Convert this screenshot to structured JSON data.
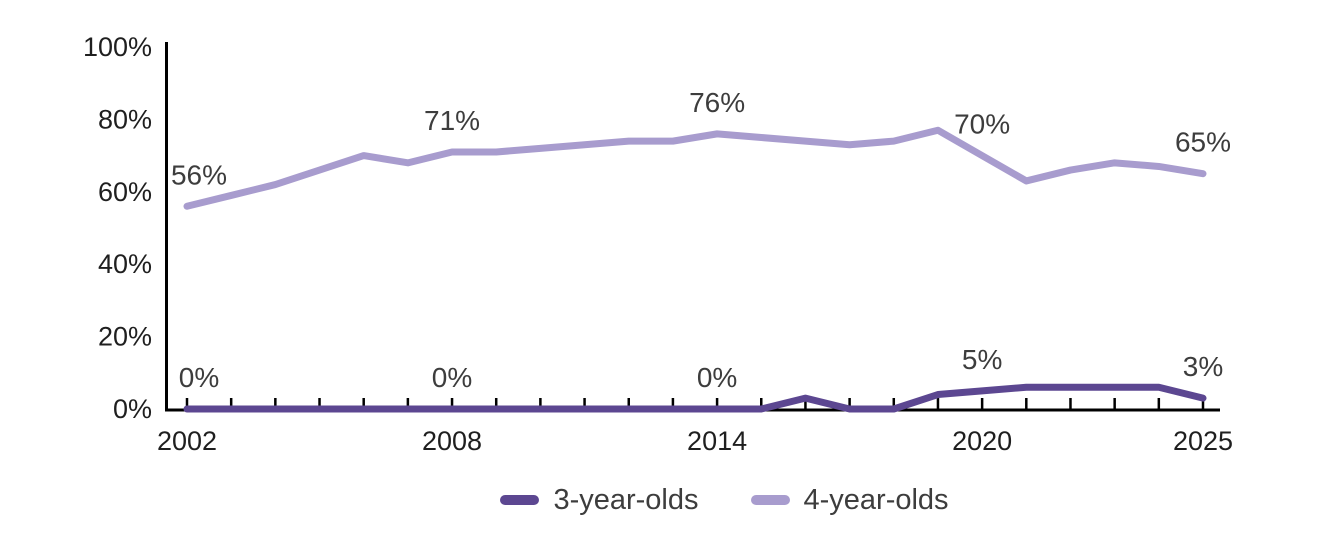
{
  "chart_data": {
    "type": "line",
    "x": [
      2002,
      2003,
      2004,
      2005,
      2006,
      2007,
      2008,
      2009,
      2010,
      2011,
      2012,
      2013,
      2014,
      2015,
      2016,
      2017,
      2018,
      2019,
      2020,
      2021,
      2022,
      2023,
      2024,
      2025
    ],
    "series": [
      {
        "name": "3-year-olds",
        "color": "#5c4791",
        "values": [
          0,
          0,
          0,
          0,
          0,
          0,
          0,
          0,
          0,
          0,
          0,
          0,
          0,
          0,
          3,
          0,
          0,
          4,
          5,
          6,
          6,
          6,
          6,
          3
        ]
      },
      {
        "name": "4-year-olds",
        "color": "#a89cce",
        "values": [
          56,
          59,
          62,
          66,
          70,
          68,
          71,
          71,
          72,
          73,
          74,
          74,
          76,
          75,
          74,
          73,
          74,
          77,
          70,
          63,
          66,
          68,
          67,
          65
        ]
      }
    ],
    "annotations": [
      {
        "series": "4-year-olds",
        "year": 2002,
        "value": 56,
        "text": "56%",
        "dx": 12
      },
      {
        "series": "4-year-olds",
        "year": 2008,
        "value": 71,
        "text": "71%",
        "dx": 0
      },
      {
        "series": "4-year-olds",
        "year": 2014,
        "value": 76,
        "text": "76%",
        "dx": 0
      },
      {
        "series": "4-year-olds",
        "year": 2020,
        "value": 70,
        "text": "70%",
        "dx": 0
      },
      {
        "series": "4-year-olds",
        "year": 2025,
        "value": 65,
        "text": "65%",
        "dx": 0
      },
      {
        "series": "3-year-olds",
        "year": 2002,
        "value": 0,
        "text": "0%",
        "dx": 12
      },
      {
        "series": "3-year-olds",
        "year": 2008,
        "value": 0,
        "text": "0%",
        "dx": 0
      },
      {
        "series": "3-year-olds",
        "year": 2014,
        "value": 0,
        "text": "0%",
        "dx": 0
      },
      {
        "series": "3-year-olds",
        "year": 2020,
        "value": 5,
        "text": "5%",
        "dx": 0
      },
      {
        "series": "3-year-olds",
        "year": 2025,
        "value": 3,
        "text": "3%",
        "dx": 0
      }
    ],
    "x_ticks": [
      {
        "year": 2002,
        "label": "2002"
      },
      {
        "year": 2008,
        "label": "2008"
      },
      {
        "year": 2014,
        "label": "2014"
      },
      {
        "year": 2020,
        "label": "2020"
      },
      {
        "year": 2025,
        "label": "2025"
      }
    ],
    "y_ticks": [
      {
        "value": 0,
        "label": "0%"
      },
      {
        "value": 20,
        "label": "20%"
      },
      {
        "value": 40,
        "label": "40%"
      },
      {
        "value": 60,
        "label": "60%"
      },
      {
        "value": 80,
        "label": "80%"
      },
      {
        "value": 100,
        "label": "100%"
      }
    ],
    "xlim": [
      2002,
      2025
    ],
    "ylim": [
      0,
      100
    ],
    "grid": false,
    "legend_position": "bottom-center",
    "title": "",
    "xlabel": "",
    "ylabel": ""
  },
  "colors": {
    "axis_line": "#000000",
    "axis_text": "#1f1f1f",
    "annotation_text": "#3d3d3d",
    "legend_text": "#3d3d3d",
    "background": "#ffffff"
  }
}
